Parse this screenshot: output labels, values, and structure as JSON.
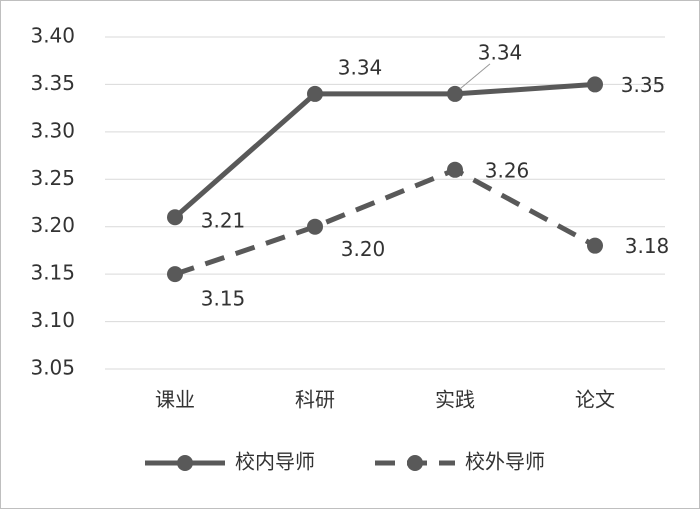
{
  "chart_data": {
    "type": "line",
    "categories": [
      "课业",
      "科研",
      "实践",
      "论文"
    ],
    "series": [
      {
        "name": "校内导师",
        "color": "#595959",
        "dashed": false,
        "values": [
          3.21,
          3.34,
          3.34,
          3.35
        ]
      },
      {
        "name": "校外导师",
        "color": "#595959",
        "dashed": true,
        "values": [
          3.15,
          3.2,
          3.26,
          3.18
        ],
        "value_labels": [
          "3.15",
          "3.20",
          "3.26",
          "3.18"
        ]
      }
    ],
    "ylim": [
      3.05,
      3.4
    ],
    "yticks": [
      3.05,
      {
        "value": 3.1,
        "label": "3.10"
      },
      3.15,
      {
        "value": 3.2,
        "label": "3.20"
      },
      3.25,
      {
        "value": 3.3,
        "label": "3.30"
      },
      3.35,
      {
        "value": 3.4,
        "label": "3.40"
      }
    ],
    "grid": true,
    "legend": "bottom"
  }
}
